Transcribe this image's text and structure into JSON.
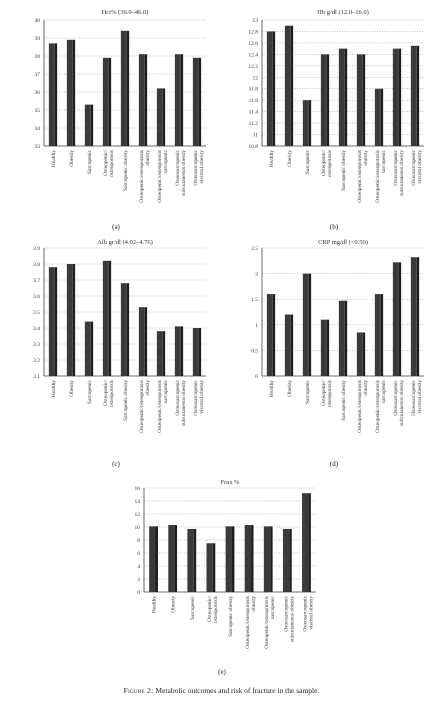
{
  "chart_data": [
    {
      "type": "bar",
      "title": "Hct% (36.0–46.0)",
      "panel_label": "(a)",
      "categories": [
        "Healthy",
        "Obesity",
        "Sarcopenic",
        "Osteopenic/\nosteoporosis",
        "Sarcopenic obesity",
        "Osteopenic/osteoporosis\nobesity",
        "Osteopenic/osteoporosis\nsarcopenic",
        "Osteosarcopenic\nsubcutaneous obesity",
        "Osteosarcopenic\nvisceral obesity"
      ],
      "values": [
        38.7,
        38.9,
        35.3,
        37.9,
        39.4,
        38.1,
        36.2,
        38.1,
        37.9
      ],
      "ylim": [
        33,
        40
      ],
      "yticks": [
        "33",
        "34",
        "35",
        "36",
        "37",
        "38",
        "39",
        "40"
      ],
      "grid": true
    },
    {
      "type": "bar",
      "title": "Hb g/dl (12.0–16.0)",
      "panel_label": "(b)",
      "categories": [
        "Healthy",
        "Obesity",
        "Sarcopenic",
        "Osteopenic/\nosteoporosis",
        "Sarcopenic obesity",
        "Osteopenic/osteoporosis\nobesity",
        "Osteopenic/osteoporosis\nsarcopenic",
        "Osteosarcopenic\nsubcutaneous obesity",
        "Osteosarcopenic\nvisceral obesity"
      ],
      "values": [
        12.8,
        12.9,
        11.6,
        12.4,
        12.5,
        12.4,
        11.8,
        12.5,
        12.55
      ],
      "ylim": [
        10.8,
        13
      ],
      "yticks": [
        "10.8",
        "11",
        "11.2",
        "11.4",
        "11.6",
        "11.8",
        "12",
        "12.2",
        "12.4",
        "12.6",
        "12.8",
        "13"
      ],
      "grid": true
    },
    {
      "type": "bar",
      "title": "Alb gr/dl (4.02–4.76)",
      "panel_label": "(c)",
      "categories": [
        "Healthy",
        "Obesity",
        "Sarcopenic",
        "Osteopenic/\nosteoporosis",
        "Sarcopenic obesity",
        "Osteopenic/osteoporosis\nobesity",
        "Osteopenic/osteoporosis\nsarcopenic",
        "Osteosarcopenic\nsubcutaneous obesity",
        "Osteosarcopenic\nvisceral obesity"
      ],
      "values": [
        3.78,
        3.8,
        3.44,
        3.82,
        3.68,
        3.53,
        3.38,
        3.41,
        3.4
      ],
      "ylim": [
        3.1,
        3.9
      ],
      "yticks": [
        "3.1",
        "3.2",
        "3.3",
        "3.4",
        "3.5",
        "3.6",
        "3.7",
        "3.8",
        "3.9"
      ],
      "grid": true
    },
    {
      "type": "bar",
      "title": "CRP mg/dl (<0.50)",
      "panel_label": "(d)",
      "categories": [
        "Healthy",
        "Obesity",
        "Sarcopenic",
        "Osteopenic/\nosteoporosis",
        "Sarcopenic obesity",
        "Osteopenic/osteoporosis\nobesity",
        "Osteopenic/osteoporosis\nsarcopenic",
        "Osteosarcopenic\nsubcutaneous obesity",
        "Osteosarcopenic\nvisceral obesity"
      ],
      "values": [
        1.6,
        1.2,
        2.0,
        1.1,
        1.47,
        0.85,
        1.6,
        2.22,
        2.32
      ],
      "ylim": [
        0,
        2.5
      ],
      "yticks": [
        "0",
        "0.5",
        "1",
        "1.5",
        "2",
        "2.5"
      ],
      "grid": true
    },
    {
      "type": "bar",
      "title": "Frax %",
      "panel_label": "(e)",
      "categories": [
        "Healthy",
        "Obesity",
        "Sarcopenic",
        "Osteopenic/\nosteoporosis",
        "Sarcopenic obesity",
        "Osteopenic/osteoporosis\nobesity",
        "Osteopenic/osteoporosis\nsarcopenic",
        "Osteosarcopenic\nsubcutaneous obesity",
        "Osteosarcopenic\nvisceral obesity"
      ],
      "values": [
        10.1,
        10.3,
        9.7,
        7.5,
        10.1,
        10.3,
        10.1,
        9.7,
        15.2
      ],
      "ylim": [
        0,
        16
      ],
      "yticks": [
        "0",
        "2",
        "4",
        "6",
        "8",
        "10",
        "12",
        "14",
        "16"
      ],
      "grid": true
    }
  ],
  "caption": {
    "figure": "Figure 2:",
    "text": "Metabolic outcomes and risk of fracture in the sample."
  },
  "colors": {
    "bar": "#3a3a3a",
    "bar_side": "#1e1e1e",
    "grid": "#888888",
    "axis": "#444444"
  }
}
